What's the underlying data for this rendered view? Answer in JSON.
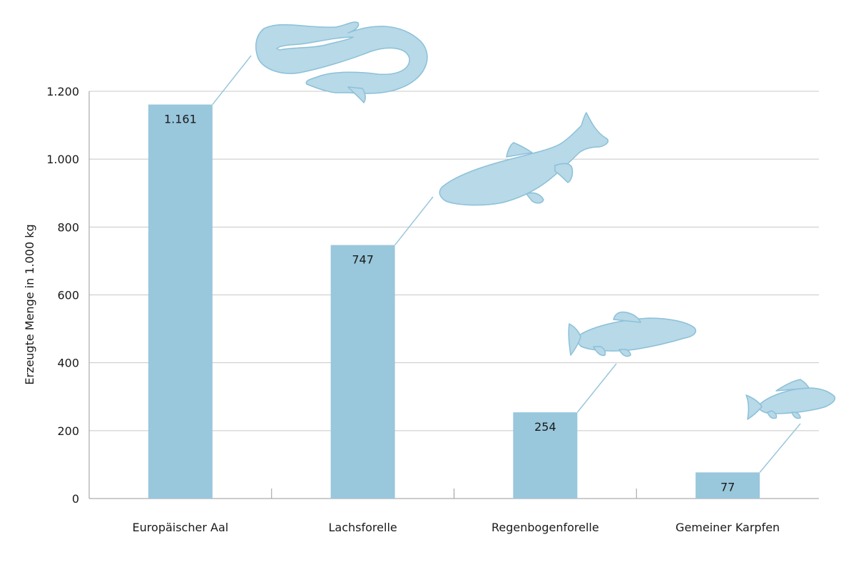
{
  "chart_data": {
    "type": "bar",
    "categories": [
      "Europäischer Aal",
      "Lachsforelle",
      "Regenbogenforelle",
      "Gemeiner Karpfen"
    ],
    "values": [
      1161,
      747,
      254,
      77
    ],
    "value_labels": [
      "1.161",
      "747",
      "254",
      "77"
    ],
    "ylabel": "Erzeugte Menge in 1.000 kg",
    "ylim": [
      0,
      1200
    ],
    "yticks": [
      0,
      200,
      400,
      600,
      800,
      1000,
      1200
    ],
    "ytick_labels": [
      "0",
      "200",
      "400",
      "600",
      "800",
      "1.000",
      "1.200"
    ],
    "grid": true,
    "legend": "none",
    "icons": [
      "eel-icon",
      "salmon-trout-icon",
      "rainbow-trout-icon",
      "carp-icon"
    ]
  },
  "colors": {
    "bar": "#99c7dc",
    "grid": "#c8c8c8",
    "axis": "#9a9a9a",
    "fish_fill": "#b7d9e8",
    "fish_stroke": "#8cc0d8",
    "leader": "#99c7dc"
  }
}
